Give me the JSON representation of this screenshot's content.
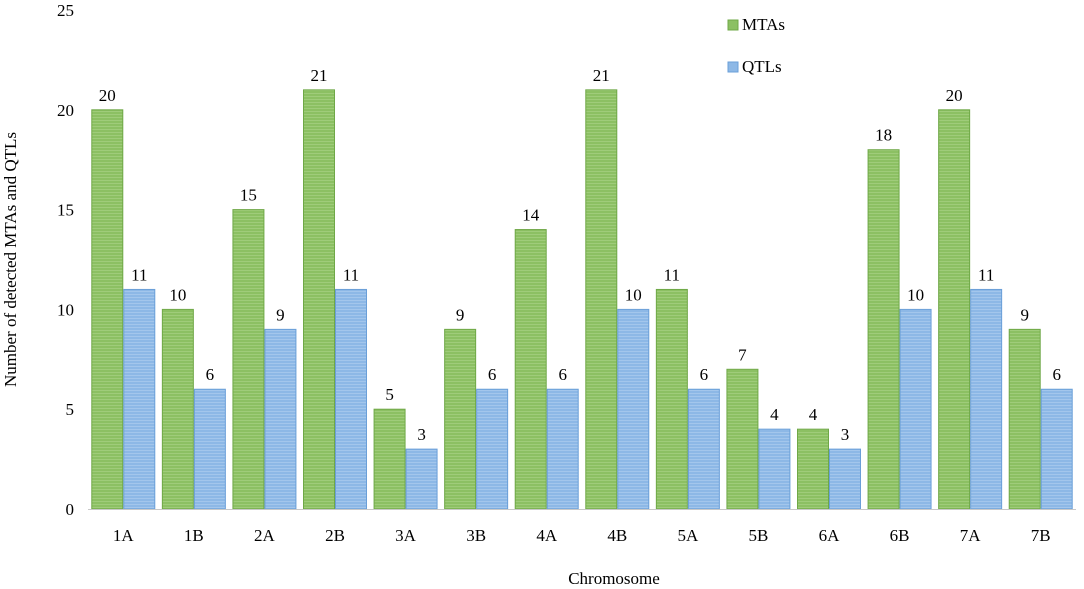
{
  "chart_data": {
    "type": "bar",
    "xlabel": "Chromosome",
    "ylabel": "Number of detected MTAs and QTLs",
    "ylim": [
      0,
      25
    ],
    "yticks": [
      0,
      5,
      10,
      15,
      20,
      25
    ],
    "categories": [
      "1A",
      "1B",
      "2A",
      "2B",
      "3A",
      "3B",
      "4A",
      "4B",
      "5A",
      "5B",
      "6A",
      "6B",
      "7A",
      "7B"
    ],
    "series": [
      {
        "name": "MTAs",
        "values": [
          20,
          10,
          15,
          21,
          5,
          9,
          14,
          21,
          11,
          7,
          4,
          18,
          20,
          9
        ],
        "color": "#8cc063",
        "stroke": "#6fa847"
      },
      {
        "name": "QTLs",
        "values": [
          11,
          6,
          9,
          11,
          3,
          6,
          6,
          10,
          6,
          4,
          3,
          10,
          11,
          6
        ],
        "color": "#8db8e6",
        "stroke": "#6a9fd8"
      }
    ],
    "grid": false,
    "legend": "top-right",
    "data_labels": true
  }
}
